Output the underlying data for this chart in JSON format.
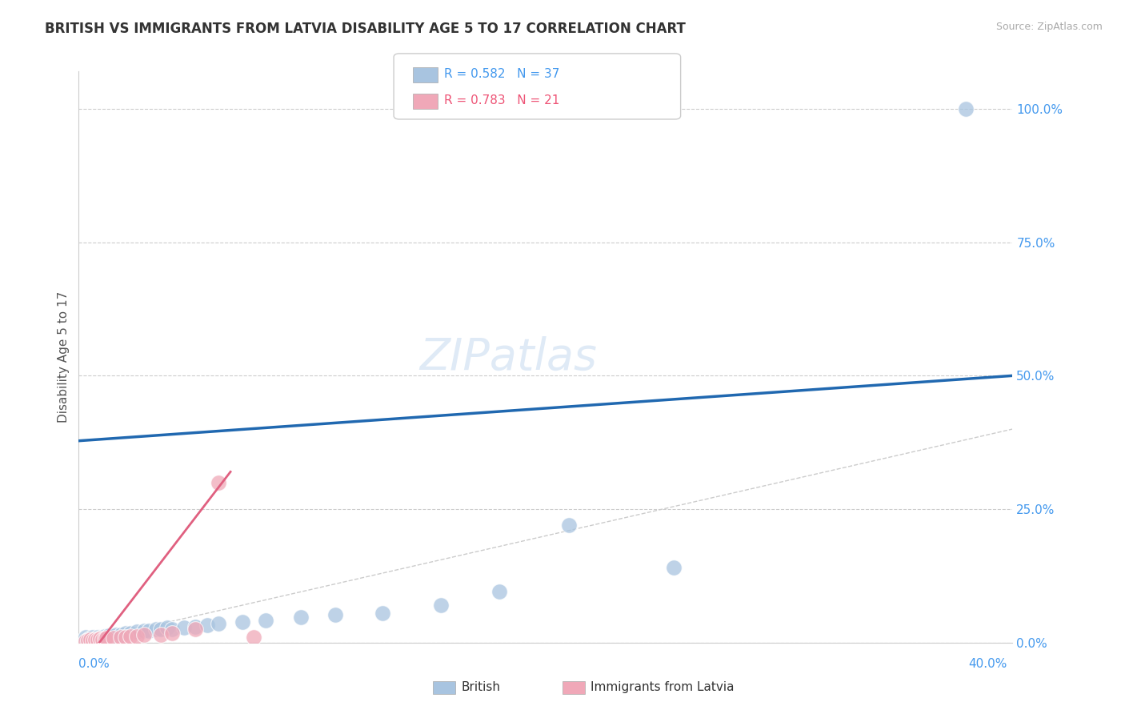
{
  "title": "BRITISH VS IMMIGRANTS FROM LATVIA DISABILITY AGE 5 TO 17 CORRELATION CHART",
  "source": "Source: ZipAtlas.com",
  "ylabel": "Disability Age 5 to 17",
  "ylabel_right_ticks": [
    "100.0%",
    "75.0%",
    "50.0%",
    "25.0%",
    "0.0%"
  ],
  "ylabel_right_vals": [
    1.0,
    0.75,
    0.5,
    0.25,
    0.0
  ],
  "xlim": [
    0.0,
    0.4
  ],
  "ylim": [
    0.0,
    1.07
  ],
  "grid_color": "#cccccc",
  "british_color": "#a8c4e0",
  "british_line_color": "#2068b0",
  "latvia_color": "#f0a8b8",
  "latvia_line_color": "#e06080",
  "british_scatter": [
    [
      0.003,
      0.01
    ],
    [
      0.004,
      0.005
    ],
    [
      0.005,
      0.008
    ],
    [
      0.006,
      0.01
    ],
    [
      0.007,
      0.007
    ],
    [
      0.008,
      0.01
    ],
    [
      0.009,
      0.008
    ],
    [
      0.01,
      0.01
    ],
    [
      0.011,
      0.012
    ],
    [
      0.012,
      0.01
    ],
    [
      0.013,
      0.013
    ],
    [
      0.015,
      0.012
    ],
    [
      0.016,
      0.015
    ],
    [
      0.018,
      0.015
    ],
    [
      0.02,
      0.018
    ],
    [
      0.022,
      0.018
    ],
    [
      0.025,
      0.02
    ],
    [
      0.028,
      0.022
    ],
    [
      0.03,
      0.022
    ],
    [
      0.033,
      0.025
    ],
    [
      0.035,
      0.025
    ],
    [
      0.038,
      0.028
    ],
    [
      0.04,
      0.025
    ],
    [
      0.045,
      0.028
    ],
    [
      0.05,
      0.03
    ],
    [
      0.055,
      0.032
    ],
    [
      0.06,
      0.035
    ],
    [
      0.07,
      0.038
    ],
    [
      0.08,
      0.042
    ],
    [
      0.095,
      0.048
    ],
    [
      0.11,
      0.052
    ],
    [
      0.13,
      0.055
    ],
    [
      0.155,
      0.07
    ],
    [
      0.18,
      0.095
    ],
    [
      0.21,
      0.22
    ],
    [
      0.255,
      0.14
    ],
    [
      0.38,
      1.0
    ]
  ],
  "latvia_scatter": [
    [
      0.003,
      0.003
    ],
    [
      0.004,
      0.004
    ],
    [
      0.005,
      0.005
    ],
    [
      0.006,
      0.004
    ],
    [
      0.007,
      0.006
    ],
    [
      0.008,
      0.005
    ],
    [
      0.009,
      0.007
    ],
    [
      0.01,
      0.006
    ],
    [
      0.011,
      0.007
    ],
    [
      0.012,
      0.008
    ],
    [
      0.015,
      0.008
    ],
    [
      0.018,
      0.01
    ],
    [
      0.02,
      0.01
    ],
    [
      0.022,
      0.012
    ],
    [
      0.025,
      0.012
    ],
    [
      0.028,
      0.015
    ],
    [
      0.035,
      0.015
    ],
    [
      0.04,
      0.018
    ],
    [
      0.05,
      0.025
    ],
    [
      0.06,
      0.3
    ],
    [
      0.075,
      0.01
    ]
  ],
  "british_line": [
    [
      0.0,
      0.378
    ],
    [
      0.4,
      0.5
    ]
  ],
  "latvia_line": [
    [
      0.0,
      -0.05
    ],
    [
      0.065,
      0.32
    ]
  ],
  "diagonal_line": [
    [
      0.0,
      0.0
    ],
    [
      1.07,
      1.07
    ]
  ]
}
